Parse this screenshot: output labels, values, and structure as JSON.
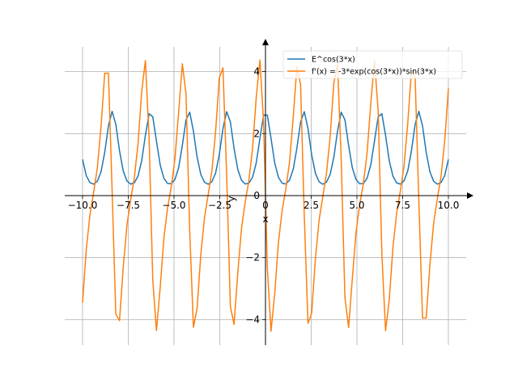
{
  "chart_data": {
    "type": "line",
    "xlabel": "x",
    "ylabel": "y",
    "xlim": [
      -10.5,
      10.5
    ],
    "ylim": [
      -4.9,
      5.0
    ],
    "grid": true,
    "legend_position": "top-right",
    "x_ticks": [
      -10.0,
      -7.5,
      -5.0,
      -2.5,
      0,
      2.5,
      5.0,
      7.5,
      10.0
    ],
    "x_tick_labels": [
      "−10.0",
      "−7.5",
      "−5.0",
      "−2.5",
      "0",
      "2.5",
      "5.0",
      "7.5",
      "10.0"
    ],
    "y_ticks": [
      -4,
      -2,
      0,
      2,
      4
    ],
    "y_tick_labels": [
      "−4",
      "−2",
      "0",
      "2",
      "4"
    ],
    "x_range": [
      -10,
      10
    ],
    "samples": 100,
    "series": [
      {
        "name": "E^cos(3*x)",
        "color": "#1f77b4",
        "function": "exp(cos(3*x))"
      },
      {
        "name": "f'(x) = -3*exp(cos(3*x))*sin(3*x)",
        "color": "#ff7f0e",
        "function": "-3*exp(cos(3*x))*sin(3*x)"
      }
    ]
  }
}
